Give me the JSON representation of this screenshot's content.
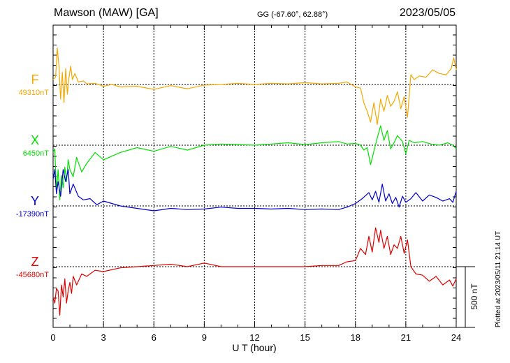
{
  "header": {
    "station": "Mawson (MAW)  [GA]",
    "coords": "GG (-67.60°,  62.88°)",
    "date": "2023/05/05"
  },
  "scale_label": "500 nT",
  "plotted": "Plotted at 2023/05/11 21:14 UT",
  "chart_data": {
    "type": "line",
    "xlabel": "U T (hour)",
    "xlim": [
      0,
      24
    ],
    "xticks": [
      0,
      3,
      6,
      9,
      12,
      15,
      18,
      21,
      24
    ],
    "grid": true,
    "scale_nT": 500,
    "series": [
      {
        "name": "F",
        "baseline_label": "49310nT",
        "baseline": 49310,
        "color": "#f5a800",
        "x": [
          0,
          0.15,
          0.25,
          0.35,
          0.45,
          0.55,
          0.65,
          0.75,
          0.85,
          0.95,
          1.05,
          1.15,
          1.3,
          1.5,
          1.8,
          2.0,
          2.5,
          3,
          3.5,
          4,
          5,
          6,
          7,
          8,
          9,
          10,
          11,
          12,
          13,
          14,
          15,
          16,
          17,
          17.5,
          18,
          18.3,
          18.5,
          18.7,
          18.9,
          19.1,
          19.3,
          19.5,
          19.7,
          19.9,
          20.1,
          20.3,
          20.5,
          20.7,
          20.9,
          21.1,
          21.3,
          21.5,
          21.8,
          22.2,
          22.6,
          23.0,
          23.4,
          23.7,
          23.85,
          24
        ],
        "values": [
          40,
          60,
          300,
          150,
          -120,
          100,
          -150,
          130,
          -80,
          60,
          150,
          40,
          90,
          20,
          30,
          5,
          10,
          -15,
          0,
          -20,
          -15,
          -40,
          -10,
          -35,
          -5,
          0,
          10,
          0,
          10,
          5,
          15,
          5,
          10,
          20,
          -20,
          -30,
          -150,
          -220,
          -310,
          -150,
          -330,
          -120,
          -220,
          -90,
          -180,
          -140,
          -60,
          -200,
          -100,
          -270,
          80,
          40,
          70,
          60,
          120,
          90,
          80,
          130,
          220,
          120
        ]
      },
      {
        "name": "X",
        "baseline_label": "6450nT",
        "baseline": 6450,
        "color": "#00e000",
        "x": [
          0,
          0.1,
          0.2,
          0.3,
          0.4,
          0.5,
          0.6,
          0.7,
          0.8,
          0.9,
          1.0,
          1.2,
          1.4,
          1.7,
          2.0,
          2.5,
          3,
          4,
          5,
          6,
          7,
          8,
          9,
          10,
          11,
          12,
          13,
          14,
          15,
          16,
          17,
          17.5,
          18,
          18.3,
          18.5,
          18.7,
          18.9,
          19.1,
          19.3,
          19.5,
          19.7,
          19.9,
          20.1,
          20.3,
          20.5,
          20.8,
          21.0,
          21.2,
          21.5,
          22.0,
          22.5,
          23.0,
          23.5,
          23.8,
          24
        ],
        "values": [
          -60,
          -30,
          -380,
          -200,
          -450,
          -250,
          -350,
          -180,
          -300,
          -120,
          -200,
          -260,
          -100,
          -220,
          -150,
          -60,
          -120,
          -60,
          -20,
          -50,
          -10,
          -40,
          0,
          10,
          5,
          0,
          10,
          20,
          5,
          20,
          30,
          10,
          15,
          0,
          -40,
          -20,
          -160,
          -50,
          60,
          160,
          40,
          120,
          -30,
          20,
          80,
          30,
          -70,
          40,
          20,
          30,
          10,
          0,
          20,
          0,
          -30
        ]
      },
      {
        "name": "Y",
        "baseline_label": "-17390nT",
        "baseline": -17390,
        "color": "#0000cc",
        "x": [
          0,
          0.1,
          0.2,
          0.3,
          0.45,
          0.6,
          0.75,
          0.9,
          1.0,
          1.2,
          1.5,
          1.8,
          2.2,
          2.6,
          3,
          4,
          5,
          6,
          7,
          8,
          9,
          10,
          11,
          12,
          13,
          14,
          15,
          16,
          17,
          17.5,
          18,
          18.4,
          18.8,
          19.0,
          19.2,
          19.4,
          19.6,
          19.8,
          20.0,
          20.2,
          20.4,
          20.6,
          20.8,
          21.0,
          21.3,
          21.6,
          22.0,
          22.4,
          22.8,
          23.2,
          23.6,
          23.8,
          24
        ],
        "values": [
          220,
          300,
          100,
          200,
          80,
          300,
          200,
          300,
          100,
          180,
          80,
          50,
          60,
          10,
          40,
          0,
          -20,
          -40,
          -20,
          -30,
          -25,
          -10,
          -20,
          -20,
          -25,
          -20,
          -30,
          -25,
          -30,
          -10,
          20,
          60,
          110,
          50,
          120,
          30,
          180,
          40,
          100,
          20,
          70,
          -10,
          80,
          30,
          60,
          110,
          40,
          90,
          70,
          40,
          60,
          30,
          120
        ]
      },
      {
        "name": "Z",
        "baseline_label": "-45680nT",
        "baseline": -45680,
        "color": "#e00000",
        "x": [
          0,
          0.1,
          0.2,
          0.3,
          0.4,
          0.5,
          0.6,
          0.7,
          0.8,
          0.9,
          1.0,
          1.1,
          1.2,
          1.4,
          1.7,
          2.0,
          2.5,
          3,
          4,
          5,
          6,
          7,
          8,
          9,
          10,
          11,
          12,
          13,
          14,
          15,
          16,
          17,
          17.5,
          18,
          18.3,
          18.6,
          18.8,
          19.0,
          19.2,
          19.4,
          19.5,
          19.7,
          19.9,
          20.1,
          20.3,
          20.5,
          20.7,
          20.9,
          21.1,
          21.3,
          21.6,
          22.0,
          22.4,
          22.8,
          23.2,
          23.6,
          23.8,
          24
        ],
        "values": [
          -250,
          -300,
          -180,
          -200,
          -400,
          -150,
          -250,
          -100,
          -300,
          -200,
          -130,
          -220,
          -80,
          -150,
          -60,
          -80,
          -30,
          -40,
          -10,
          0,
          10,
          20,
          0,
          30,
          0,
          0,
          0,
          0,
          0,
          0,
          10,
          10,
          40,
          50,
          150,
          100,
          250,
          120,
          320,
          200,
          300,
          150,
          250,
          100,
          180,
          150,
          250,
          110,
          220,
          0,
          -60,
          -70,
          -120,
          -80,
          -150,
          -110,
          -160,
          -100
        ]
      }
    ]
  }
}
